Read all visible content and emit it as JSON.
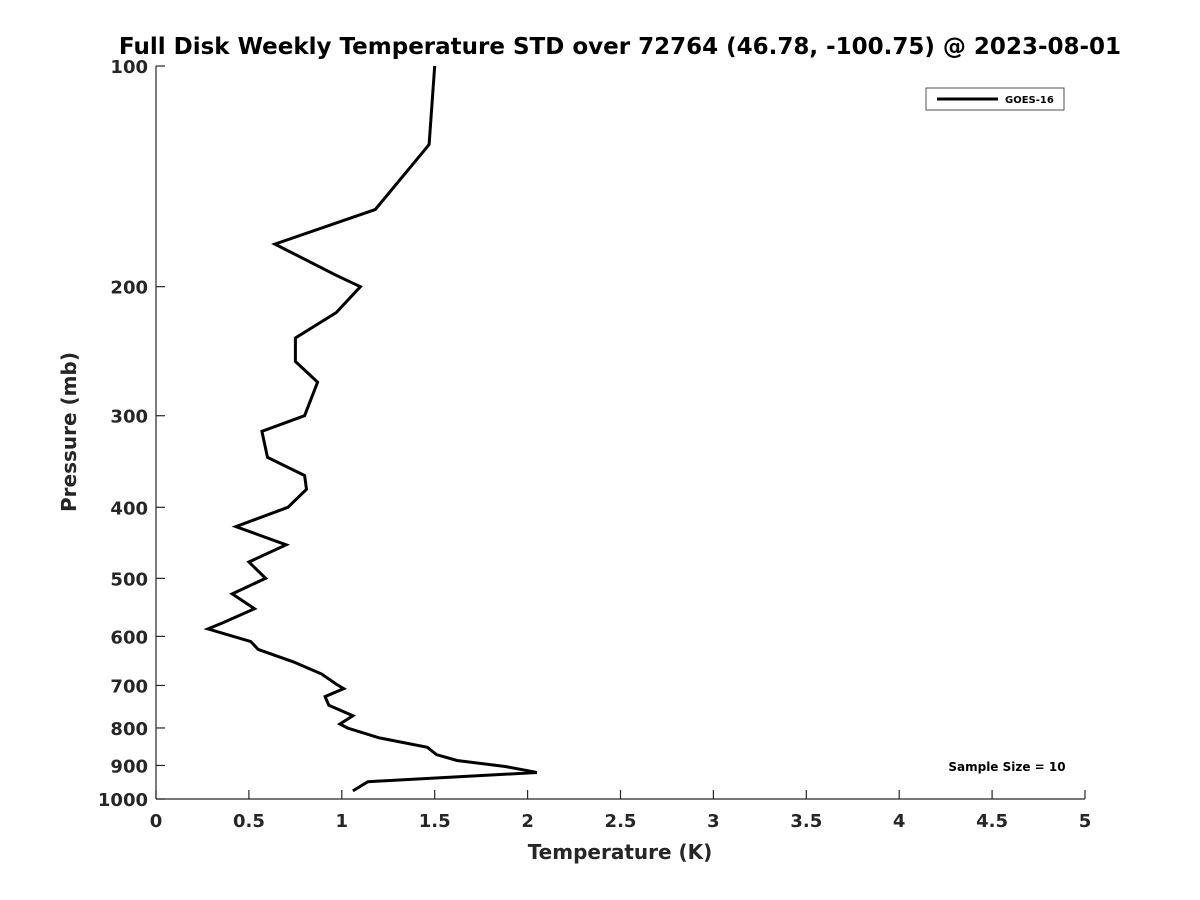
{
  "chart_data": {
    "type": "line",
    "title": "Full Disk Weekly Temperature STD over 72764 (46.78, -100.75) @ 2023-08-01",
    "xlabel": "Temperature (K)",
    "ylabel": "Pressure (mb)",
    "xlim": [
      0,
      5
    ],
    "ylim": [
      100,
      1000
    ],
    "y_scale": "log",
    "y_reversed": true,
    "x_ticks": [
      "0",
      "0.5",
      "1",
      "1.5",
      "2",
      "2.5",
      "3",
      "3.5",
      "4",
      "4.5",
      "5"
    ],
    "y_ticks": [
      "100",
      "200",
      "300",
      "400",
      "500",
      "600",
      "700",
      "800",
      "900",
      "1000"
    ],
    "grid": false,
    "legend_position": "top-right",
    "annotation": "Sample Size = 10",
    "series": [
      {
        "name": "GOES-16",
        "color": "#000000",
        "x": [
          1.5,
          1.47,
          1.18,
          0.64,
          0.97,
          1.1,
          0.97,
          0.75,
          0.75,
          0.87,
          0.8,
          0.57,
          0.6,
          0.8,
          0.81,
          0.71,
          0.43,
          0.7,
          0.5,
          0.59,
          0.41,
          0.53,
          0.36,
          0.28,
          0.51,
          0.55,
          0.74,
          0.89,
          0.97,
          1.01,
          0.91,
          0.93,
          1.06,
          0.99,
          1.03,
          1.2,
          1.46,
          1.51,
          1.62,
          1.88,
          2.05,
          1.14,
          1.06
        ],
        "y": [
          100,
          128,
          157,
          175,
          193,
          200,
          217,
          235,
          253,
          270,
          300,
          315,
          342,
          362,
          378,
          400,
          425,
          450,
          475,
          500,
          525,
          550,
          575,
          586,
          610,
          625,
          650,
          675,
          697,
          707,
          725,
          745,
          770,
          790,
          800,
          825,
          850,
          870,
          886,
          903,
          920,
          947,
          975
        ]
      }
    ]
  }
}
